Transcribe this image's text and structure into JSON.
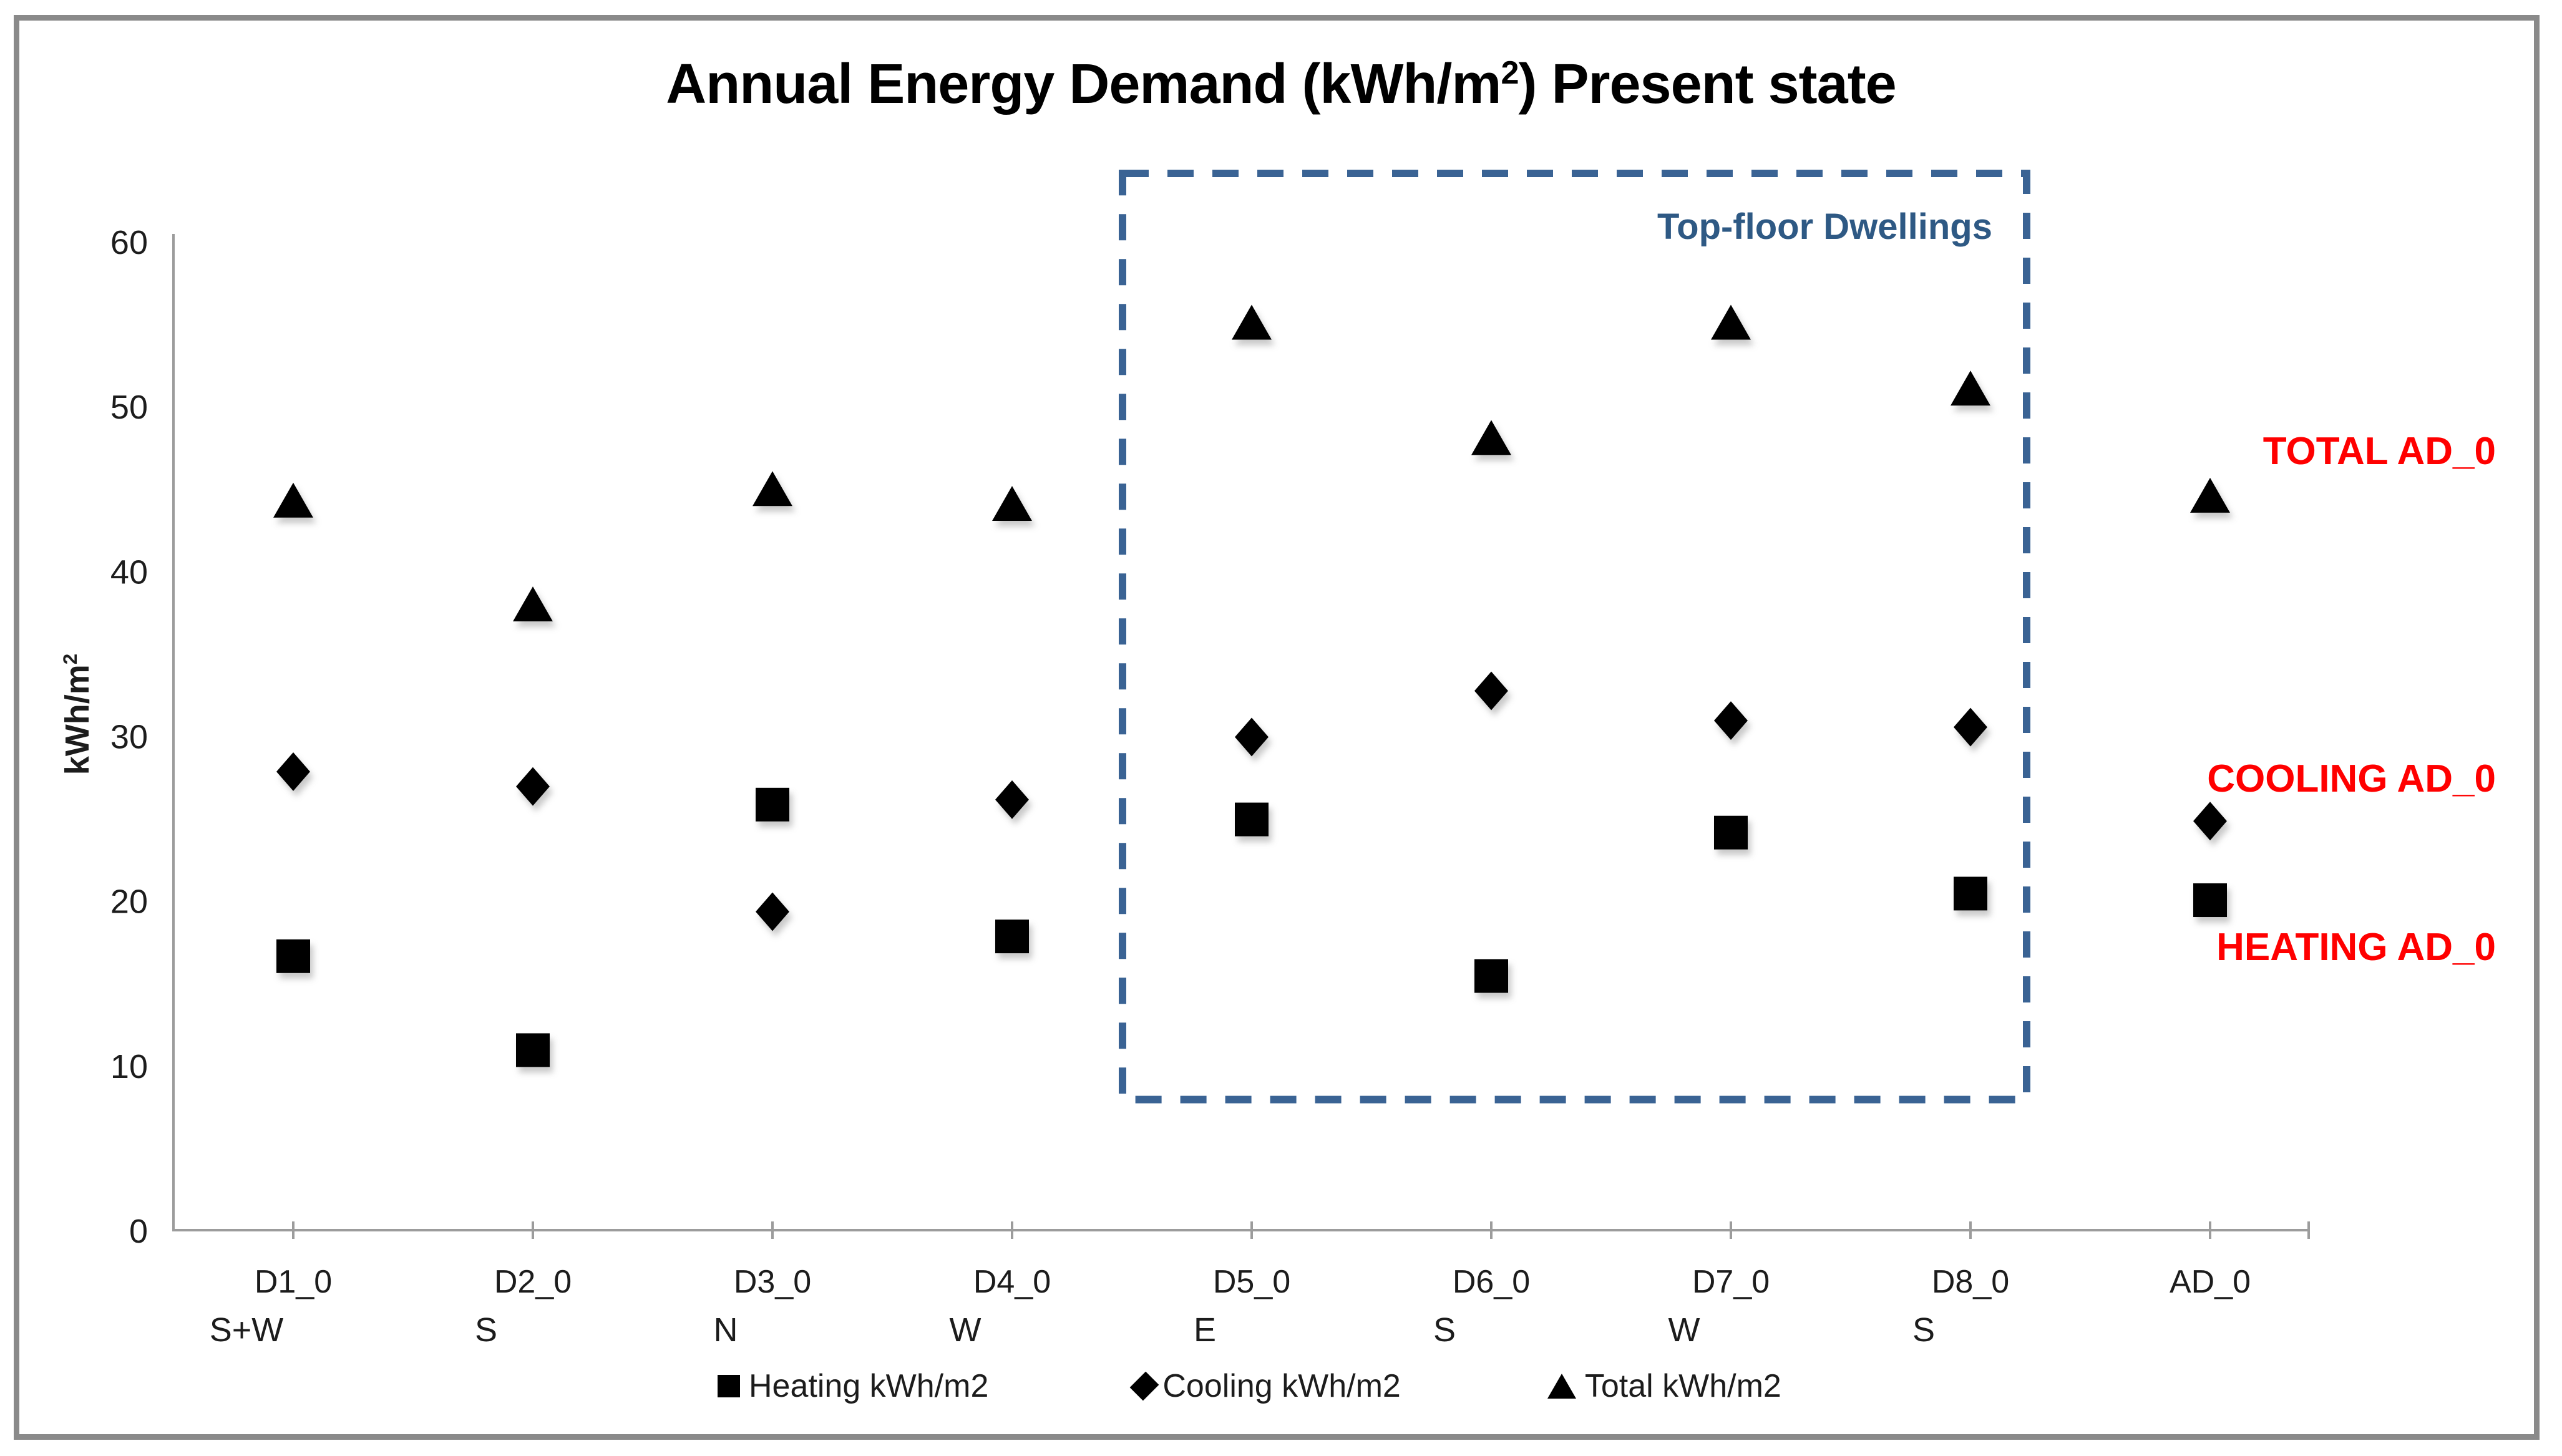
{
  "window": {
    "background": "#ffffff",
    "frame_color": "#8a8a8a"
  },
  "title": {
    "prefix": "Annual Energy Demand (kWh/m",
    "superscript": "2",
    "suffix": ") Present state"
  },
  "y_axis": {
    "title_prefix": "kWh/m",
    "title_superscript": "2",
    "min": 0,
    "max": 60,
    "tick_labels": [
      "0",
      "10",
      "20",
      "30",
      "40",
      "50",
      "60"
    ]
  },
  "chart_data": {
    "type": "scatter",
    "title": "Annual Energy Demand (kWh/m2) Present state",
    "xlabel": "",
    "ylabel": "kWh/m2",
    "ylim": [
      0,
      60
    ],
    "y_ticks": [
      0,
      10,
      20,
      30,
      40,
      50,
      60
    ],
    "grid": false,
    "legend_position": "bottom",
    "marker_color": "#000000",
    "categories": [
      "D1_0",
      "D2_0",
      "D3_0",
      "D4_0",
      "D5_0",
      "D6_0",
      "D7_0",
      "D8_0",
      "AD_0"
    ],
    "orientations": [
      "S+W",
      "S",
      "N",
      "W",
      "E",
      "S",
      "W",
      "S",
      ""
    ],
    "series": [
      {
        "name": "Heating kWh/m2",
        "marker": "square",
        "values": [
          16.7,
          11.0,
          25.9,
          17.9,
          25.0,
          15.5,
          24.2,
          20.5,
          20.1
        ]
      },
      {
        "name": "Cooling kWh/m2",
        "marker": "diamond",
        "values": [
          27.9,
          27.0,
          19.4,
          26.2,
          30.0,
          32.8,
          31.0,
          30.6,
          24.9
        ]
      },
      {
        "name": "Total kWh/m2",
        "marker": "triangle",
        "values": [
          44.3,
          38.0,
          45.0,
          44.1,
          55.1,
          48.1,
          55.1,
          51.1,
          44.6
        ]
      }
    ],
    "ref_lines": [
      {
        "label": "TOTAL AD_0",
        "value": 44.6,
        "style": "dash-dot"
      },
      {
        "label": "COOLING AD_0",
        "value": 24.9,
        "style": "dotted"
      },
      {
        "label": "HEATING AD_0",
        "value": 20.1,
        "style": "dashed"
      }
    ],
    "ref_label_color": "#ff0000",
    "annotation_box": {
      "label": "Top-floor Dwellings",
      "from_category": "D5_0",
      "to_category": "D8_0",
      "y_top_value": 64.2,
      "y_bottom_value": 8.0,
      "box_color": "#3a6394",
      "label_color": "#2e5984"
    }
  }
}
